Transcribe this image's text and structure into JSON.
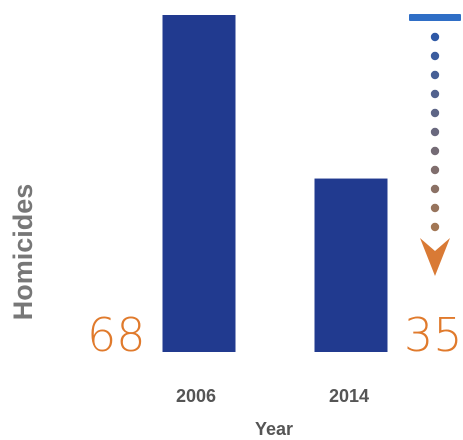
{
  "chart_data": {
    "type": "bar",
    "categories": [
      "2006",
      "2014"
    ],
    "values": [
      68,
      35
    ],
    "value_labels": [
      "68",
      "35"
    ],
    "xlabel": "Year",
    "ylabel": "Homicides",
    "ylim": [
      0,
      68
    ],
    "grid": false,
    "legend": "none"
  },
  "colors": {
    "bar": "#213a8f",
    "value_label": "#e07a2c",
    "axis_label": "#777777",
    "tick_label": "#555555",
    "arrow_start_dot": "#2f59a6",
    "arrow_end_dot": "#a27755",
    "arrow_head": "#d97a35",
    "top_marker": "#2f6ec6"
  },
  "decoration": {
    "trend_arrow": "dotted-down-arrow-icon",
    "reference_marker": "blue-dash-marker"
  }
}
